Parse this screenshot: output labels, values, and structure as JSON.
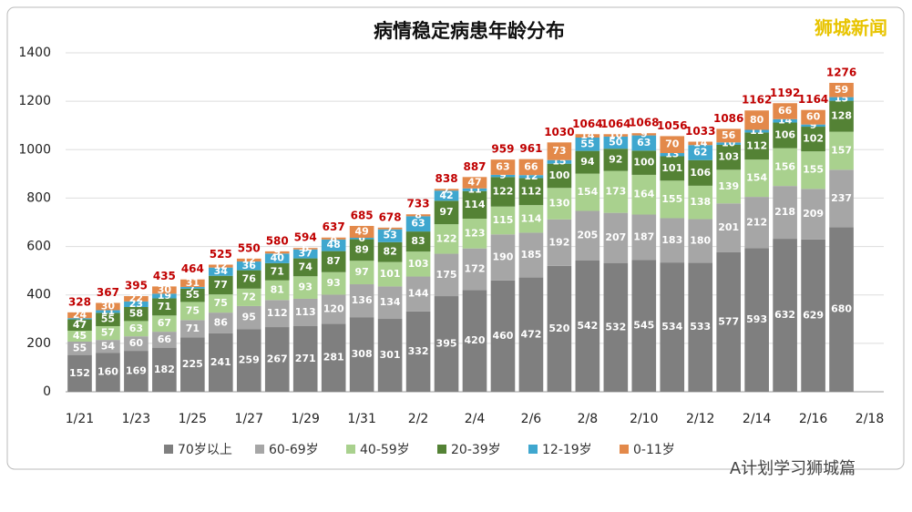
{
  "chart_data": {
    "type": "stacked_bar",
    "title": "病情稳定病患年龄分布",
    "brand": "狮城新闻",
    "footer": "A计划学习狮城篇",
    "categories": [
      "1/21",
      null,
      "1/23",
      null,
      "1/25",
      null,
      "1/27",
      null,
      "1/29",
      null,
      "1/31",
      null,
      "2/2",
      null,
      "2/4",
      null,
      "2/6",
      null,
      "2/8",
      null,
      "2/10",
      null,
      "2/12",
      null,
      "2/14",
      null,
      "2/16",
      null,
      "2/18"
    ],
    "series": [
      {
        "name": "70岁以上",
        "color": "#7f7f7f",
        "values": [
          152,
          160,
          169,
          182,
          225,
          241,
          259,
          267,
          271,
          281,
          308,
          301,
          332,
          395,
          420,
          460,
          472,
          520,
          542,
          532,
          545,
          534,
          533,
          577,
          593,
          632,
          629,
          680,
          null
        ]
      },
      {
        "name": "60-69岁",
        "color": "#a6a6a6",
        "values": [
          55,
          54,
          60,
          66,
          71,
          86,
          95,
          112,
          113,
          120,
          136,
          134,
          144,
          175,
          172,
          190,
          185,
          192,
          205,
          207,
          187,
          183,
          180,
          201,
          212,
          218,
          209,
          237,
          null
        ]
      },
      {
        "name": "40-59岁",
        "color": "#a9d18e",
        "values": [
          45,
          57,
          63,
          67,
          75,
          75,
          72,
          81,
          93,
          93,
          97,
          101,
          103,
          122,
          123,
          115,
          114,
          130,
          154,
          173,
          164,
          155,
          138,
          139,
          154,
          156,
          155,
          157,
          null
        ]
      },
      {
        "name": "20-39岁",
        "color": "#548235",
        "values": [
          47,
          55,
          58,
          71,
          55,
          77,
          76,
          71,
          74,
          87,
          89,
          82,
          83,
          97,
          114,
          122,
          112,
          100,
          94,
          92,
          100,
          101,
          106,
          103,
          112,
          106,
          102,
          128,
          null
        ]
      },
      {
        "name": "12-19岁",
        "color": "#3fa7cf",
        "values": [
          5,
          11,
          23,
          19,
          7,
          34,
          36,
          40,
          37,
          48,
          6,
          53,
          63,
          42,
          11,
          9,
          12,
          15,
          55,
          50,
          63,
          13,
          62,
          10,
          11,
          14,
          9,
          15,
          null
        ]
      },
      {
        "name": "0-11岁",
        "color": "#e3894a",
        "values": [
          24,
          30,
          22,
          30,
          31,
          12,
          12,
          9,
          6,
          8,
          49,
          7,
          8,
          7,
          47,
          63,
          66,
          73,
          14,
          10,
          9,
          70,
          14,
          56,
          80,
          66,
          60,
          59,
          null
        ]
      }
    ],
    "totals": [
      328,
      367,
      395,
      435,
      464,
      525,
      550,
      580,
      594,
      637,
      685,
      678,
      733,
      838,
      887,
      959,
      961,
      1030,
      1064,
      1064,
      1068,
      1056,
      1033,
      1086,
      1162,
      1192,
      1164,
      1276,
      null
    ],
    "ylim": [
      0,
      1400
    ],
    "yticks": [
      0,
      200,
      400,
      600,
      800,
      1000,
      1200,
      1400
    ],
    "grid": true
  }
}
